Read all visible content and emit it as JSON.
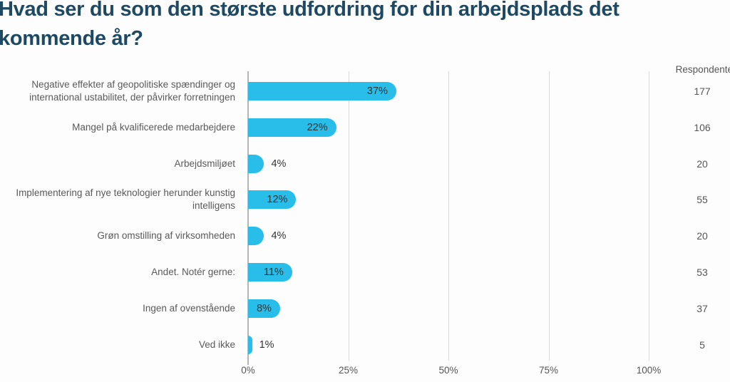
{
  "title": "Hvad ser du som den største udfordring for din arbejdsplads det kommende år?",
  "respondents_header": "Respondente",
  "colors": {
    "bar": "#29BDE9",
    "title": "#1E4963",
    "category_label": "#595959",
    "value_label": "#333333",
    "gridline": "#DADADA",
    "axis_line": "#B5B5B5",
    "tick_label": "#555555",
    "background": "#FDFDFD"
  },
  "chart_data": {
    "type": "bar",
    "orientation": "horizontal",
    "title": "Hvad ser du som den største udfordring for din arbejdsplads det kommende år?",
    "categories": [
      "Negative effekter af geopolitiske spændinger og international ustabilitet, der påvirker forretningen",
      "Mangel på kvalificerede medarbejdere",
      "Arbejdsmiljøet",
      "Implementering af nye teknologier herunder kunstig intelligens",
      "Grøn omstilling af virksomheden",
      "Andet. Notér gerne:",
      "Ingen af ovenstående",
      "Ved ikke"
    ],
    "values": [
      37,
      22,
      4,
      12,
      4,
      11,
      8,
      1
    ],
    "value_labels": [
      "37%",
      "22%",
      "4%",
      "12%",
      "4%",
      "11%",
      "8%",
      "1%"
    ],
    "respondents": [
      177,
      106,
      20,
      55,
      20,
      53,
      37,
      5
    ],
    "respondents_column_header": "Respondente",
    "x_ticks": [
      0,
      25,
      50,
      75,
      100
    ],
    "x_tick_labels": [
      "0%",
      "25%",
      "50%",
      "75%",
      "100%"
    ],
    "xlim": [
      0,
      100
    ],
    "grid": true,
    "legend": false
  }
}
